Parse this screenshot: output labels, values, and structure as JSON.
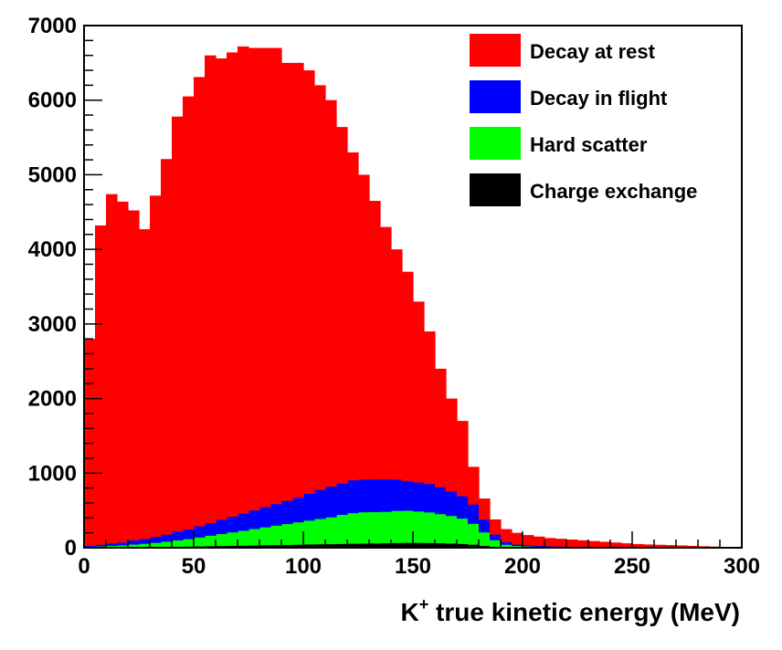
{
  "chart_data": {
    "type": "bar",
    "stacked": true,
    "bin_width": 5,
    "xlim": [
      0,
      300
    ],
    "ylim": [
      0,
      7000
    ],
    "xticks": [
      "0",
      "50",
      "100",
      "150",
      "200",
      "250",
      "300"
    ],
    "yticks": [
      "0",
      "1000",
      "2000",
      "3000",
      "4000",
      "5000",
      "6000",
      "7000"
    ],
    "xlabel": {
      "prefix": "K",
      "sup": "+",
      "rest": " true kinetic energy (MeV)"
    },
    "ylabel": "",
    "legend_position": "top-right",
    "x": [
      0,
      5,
      10,
      15,
      20,
      25,
      30,
      35,
      40,
      45,
      50,
      55,
      60,
      65,
      70,
      75,
      80,
      85,
      90,
      95,
      100,
      105,
      110,
      115,
      120,
      125,
      130,
      135,
      140,
      145,
      150,
      155,
      160,
      165,
      170,
      175,
      180,
      185,
      190,
      195,
      200,
      205,
      210,
      215,
      220,
      225,
      230,
      235,
      240,
      245,
      250,
      255,
      260,
      265,
      270,
      275,
      280,
      285,
      290,
      295
    ],
    "series": [
      {
        "name": "Charge exchange",
        "color": "#000000",
        "values": [
          5,
          8,
          10,
          10,
          12,
          12,
          15,
          15,
          18,
          20,
          22,
          25,
          28,
          30,
          32,
          35,
          38,
          40,
          42,
          45,
          48,
          50,
          52,
          55,
          58,
          60,
          62,
          65,
          68,
          70,
          70,
          68,
          65,
          60,
          55,
          45,
          30,
          15,
          5,
          3,
          3,
          2,
          2,
          2,
          2,
          1,
          1,
          1,
          1,
          1,
          1,
          1,
          1,
          0,
          0,
          0,
          0,
          0,
          0,
          0
        ]
      },
      {
        "name": "Hard scatter",
        "color": "#00ff00",
        "values": [
          10,
          15,
          20,
          25,
          35,
          45,
          55,
          70,
          85,
          100,
          120,
          140,
          160,
          180,
          200,
          220,
          240,
          260,
          280,
          300,
          320,
          340,
          360,
          390,
          410,
          420,
          420,
          420,
          430,
          430,
          420,
          410,
          390,
          370,
          340,
          280,
          180,
          90,
          40,
          25,
          20,
          15,
          12,
          10,
          8,
          6,
          5,
          4,
          3,
          3,
          2,
          2,
          2,
          1,
          1,
          1,
          1,
          1,
          0,
          0
        ]
      },
      {
        "name": "Decay in flight",
        "color": "#0000ff",
        "values": [
          15,
          22,
          30,
          40,
          55,
          65,
          80,
          95,
          120,
          130,
          150,
          170,
          190,
          210,
          230,
          250,
          270,
          290,
          310,
          330,
          360,
          390,
          410,
          420,
          440,
          440,
          440,
          440,
          420,
          400,
          390,
          380,
          360,
          330,
          300,
          260,
          170,
          75,
          35,
          20,
          15,
          12,
          10,
          8,
          6,
          5,
          4,
          3,
          2,
          2,
          2,
          1,
          1,
          1,
          1,
          1,
          0,
          0,
          0,
          0
        ]
      },
      {
        "name": "Decay at rest",
        "color": "#ff0000",
        "values": [
          2770,
          4275,
          4680,
          4565,
          4420,
          4148,
          4570,
          5030,
          5557,
          5800,
          6018,
          6265,
          6182,
          6220,
          6258,
          6195,
          6152,
          6110,
          5868,
          5825,
          5672,
          5420,
          5178,
          4775,
          4392,
          4080,
          3728,
          3375,
          3082,
          2800,
          2420,
          2042,
          1585,
          1240,
          1005,
          500,
          280,
          200,
          170,
          152,
          132,
          121,
          106,
          100,
          94,
          88,
          80,
          72,
          64,
          54,
          45,
          40,
          36,
          34,
          29,
          23,
          19,
          14,
          10,
          5
        ]
      }
    ],
    "legend": [
      {
        "label": "Decay at rest",
        "color": "#ff0000"
      },
      {
        "label": "Decay in flight",
        "color": "#0000ff"
      },
      {
        "label": "Hard scatter",
        "color": "#00ff00"
      },
      {
        "label": "Charge exchange",
        "color": "#000000"
      }
    ]
  }
}
